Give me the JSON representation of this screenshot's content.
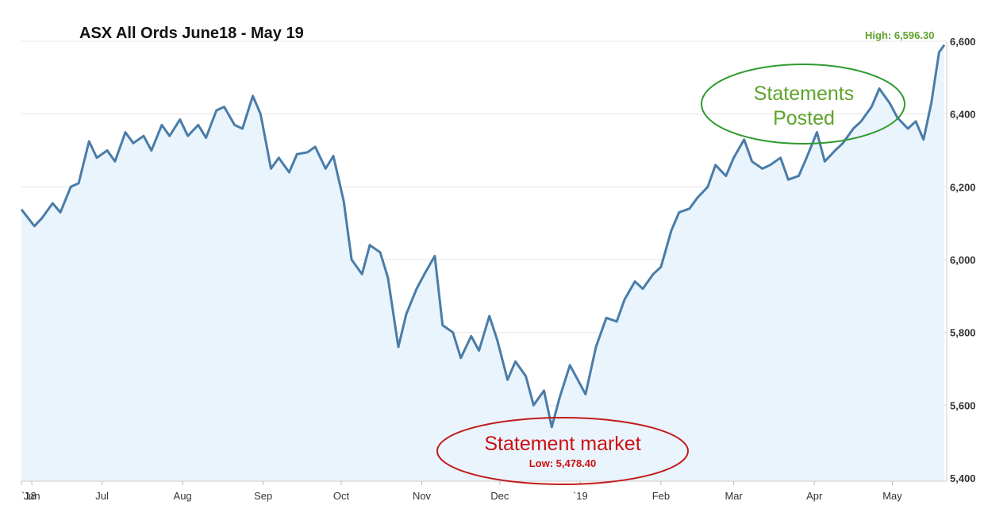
{
  "title": "ASX All Ords June18 - May 19",
  "colors": {
    "line": "#4a7ca8",
    "fill": "#eaf4fd",
    "grid": "#e4e4e4",
    "high": "#5fa32c",
    "low": "#cc1111",
    "posted_ellipse": "#2f9a2f",
    "market_ellipse": "#c11b1b"
  },
  "chart_data": {
    "type": "area",
    "title": "ASX All Ords June18 - May 19",
    "xlabel": "",
    "ylabel": "",
    "ylim": [
      5400,
      6600
    ],
    "yticks": [
      5400,
      5600,
      5800,
      6000,
      6200,
      6400,
      6600
    ],
    "ytick_labels": [
      "5,400",
      "5,600",
      "5,800",
      "6,000",
      "6,200",
      "6,400",
      "6,600"
    ],
    "xticks": [
      {
        "label": "`18",
        "x": "2018-05-31"
      },
      {
        "label": "Jun",
        "x": "2018-06-04"
      },
      {
        "label": "Jul",
        "x": "2018-07-01"
      },
      {
        "label": "Aug",
        "x": "2018-08-01"
      },
      {
        "label": "Sep",
        "x": "2018-09-01"
      },
      {
        "label": "Oct",
        "x": "2018-10-01"
      },
      {
        "label": "Nov",
        "x": "2018-11-01"
      },
      {
        "label": "Dec",
        "x": "2018-12-01"
      },
      {
        "label": "`19",
        "x": "2019-01-01"
      },
      {
        "label": "Feb",
        "x": "2019-02-01"
      },
      {
        "label": "Mar",
        "x": "2019-03-01"
      },
      {
        "label": "Apr",
        "x": "2019-04-01"
      },
      {
        "label": "May",
        "x": "2019-05-01"
      }
    ],
    "grid": true,
    "legend": "none",
    "series": [
      {
        "x": [
          "2018-05-31",
          "2018-06-05",
          "2018-06-08",
          "2018-06-12",
          "2018-06-15",
          "2018-06-19",
          "2018-06-22",
          "2018-06-26",
          "2018-06-29",
          "2018-07-03",
          "2018-07-06",
          "2018-07-10",
          "2018-07-13",
          "2018-07-17",
          "2018-07-20",
          "2018-07-24",
          "2018-07-27",
          "2018-07-31",
          "2018-08-03",
          "2018-08-07",
          "2018-08-10",
          "2018-08-14",
          "2018-08-17",
          "2018-08-21",
          "2018-08-24",
          "2018-08-28",
          "2018-08-31",
          "2018-09-04",
          "2018-09-07",
          "2018-09-11",
          "2018-09-14",
          "2018-09-18",
          "2018-09-21",
          "2018-09-25",
          "2018-09-28",
          "2018-10-02",
          "2018-10-05",
          "2018-10-09",
          "2018-10-12",
          "2018-10-16",
          "2018-10-19",
          "2018-10-23",
          "2018-10-26",
          "2018-10-30",
          "2018-11-02",
          "2018-11-06",
          "2018-11-09",
          "2018-11-13",
          "2018-11-16",
          "2018-11-20",
          "2018-11-23",
          "2018-11-27",
          "2018-11-30",
          "2018-12-04",
          "2018-12-07",
          "2018-12-11",
          "2018-12-14",
          "2018-12-18",
          "2018-12-21",
          "2018-12-24",
          "2018-12-28",
          "2019-01-03",
          "2019-01-07",
          "2019-01-11",
          "2019-01-15",
          "2019-01-18",
          "2019-01-22",
          "2019-01-25",
          "2019-01-29",
          "2019-02-01",
          "2019-02-05",
          "2019-02-08",
          "2019-02-12",
          "2019-02-15",
          "2019-02-19",
          "2019-02-22",
          "2019-02-26",
          "2019-03-01",
          "2019-03-05",
          "2019-03-08",
          "2019-03-12",
          "2019-03-15",
          "2019-03-19",
          "2019-03-22",
          "2019-03-26",
          "2019-03-29",
          "2019-04-02",
          "2019-04-05",
          "2019-04-09",
          "2019-04-12",
          "2019-04-16",
          "2019-04-19",
          "2019-04-23",
          "2019-04-26",
          "2019-04-30",
          "2019-05-03",
          "2019-05-07",
          "2019-05-10",
          "2019-05-13",
          "2019-05-16",
          "2019-05-19",
          "2019-05-21"
        ],
        "values": [
          6138,
          6092,
          6115,
          6155,
          6130,
          6200,
          6210,
          6325,
          6280,
          6300,
          6270,
          6350,
          6320,
          6340,
          6300,
          6370,
          6340,
          6385,
          6340,
          6370,
          6335,
          6410,
          6420,
          6370,
          6360,
          6450,
          6400,
          6250,
          6280,
          6240,
          6290,
          6295,
          6310,
          6250,
          6285,
          6160,
          6000,
          5960,
          6040,
          6020,
          5950,
          5760,
          5850,
          5920,
          5960,
          6010,
          5820,
          5800,
          5730,
          5790,
          5750,
          5845,
          5780,
          5670,
          5720,
          5680,
          5600,
          5640,
          5540,
          5620,
          5710,
          5630,
          5760,
          5840,
          5830,
          5890,
          5940,
          5920,
          5960,
          5980,
          6080,
          6130,
          6140,
          6170,
          6200,
          6260,
          6230,
          6280,
          6330,
          6270,
          6250,
          6260,
          6280,
          6220,
          6230,
          6280,
          6350,
          6270,
          6300,
          6320,
          6360,
          6380,
          6420,
          6470,
          6430,
          6390,
          6360,
          6380,
          6330,
          6430,
          6570,
          6590
        ]
      }
    ],
    "annotations": {
      "high_label": "High: 6,596.30",
      "low_label": "Low: 5,478.40",
      "posted_line1": "Statements",
      "posted_line2": "Posted",
      "market_label": "Statement market"
    }
  }
}
